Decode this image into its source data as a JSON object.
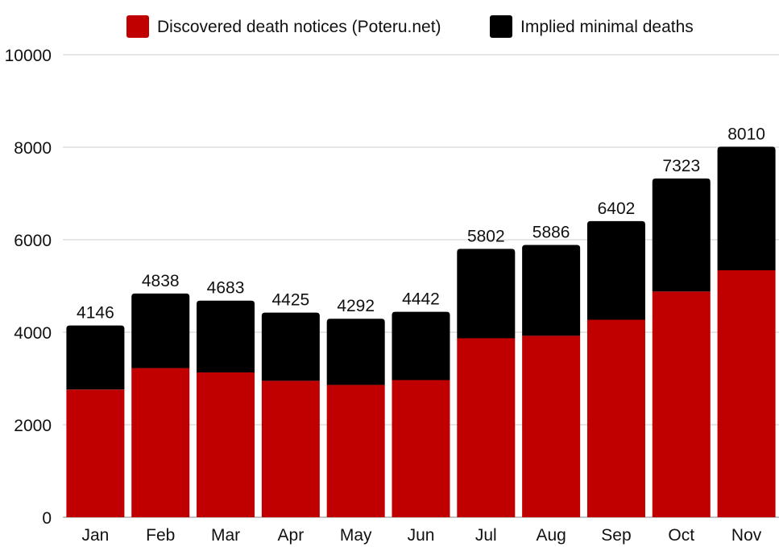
{
  "chart_data": {
    "type": "bar",
    "stacked": true,
    "categories": [
      "Jan",
      "Feb",
      "Mar",
      "Apr",
      "May",
      "Jun",
      "Jul",
      "Aug",
      "Sep",
      "Oct",
      "Nov"
    ],
    "series": [
      {
        "name": "Discovered death notices (Poteru.net)",
        "color": "#c00000",
        "values": [
          2760,
          3225,
          3130,
          2950,
          2860,
          2965,
          3870,
          3925,
          4270,
          4880,
          5340
        ]
      },
      {
        "name": "Implied minimal deaths",
        "color": "#000000",
        "values": [
          1386,
          1613,
          1553,
          1475,
          1432,
          1477,
          1932,
          1961,
          2132,
          2443,
          2670
        ]
      }
    ],
    "totals": [
      4146,
      4838,
      4683,
      4425,
      4292,
      4442,
      5802,
      5886,
      6402,
      7323,
      8010
    ],
    "ylim": [
      0,
      10000
    ],
    "yticks": [
      0,
      2000,
      4000,
      6000,
      8000,
      10000
    ],
    "grid": true,
    "legend_position": "top"
  }
}
